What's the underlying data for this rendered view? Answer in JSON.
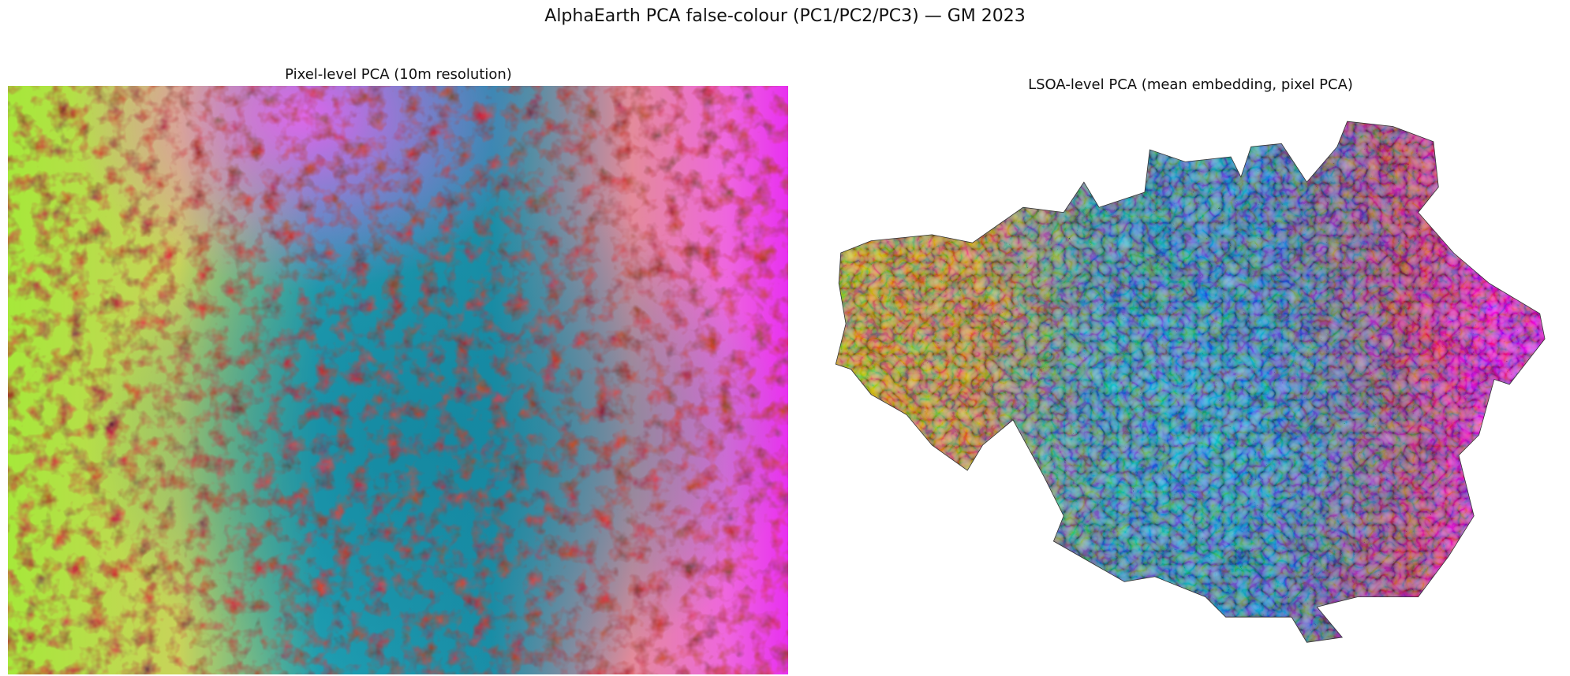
{
  "title": "AlphaEarth PCA false-colour (PC1/PC2/PC3) — GM 2023",
  "panels": [
    {
      "title": "Pixel-level PCA (10m resolution)"
    },
    {
      "title": "LSOA-level PCA (mean embedding, pixel PCA)"
    }
  ]
}
